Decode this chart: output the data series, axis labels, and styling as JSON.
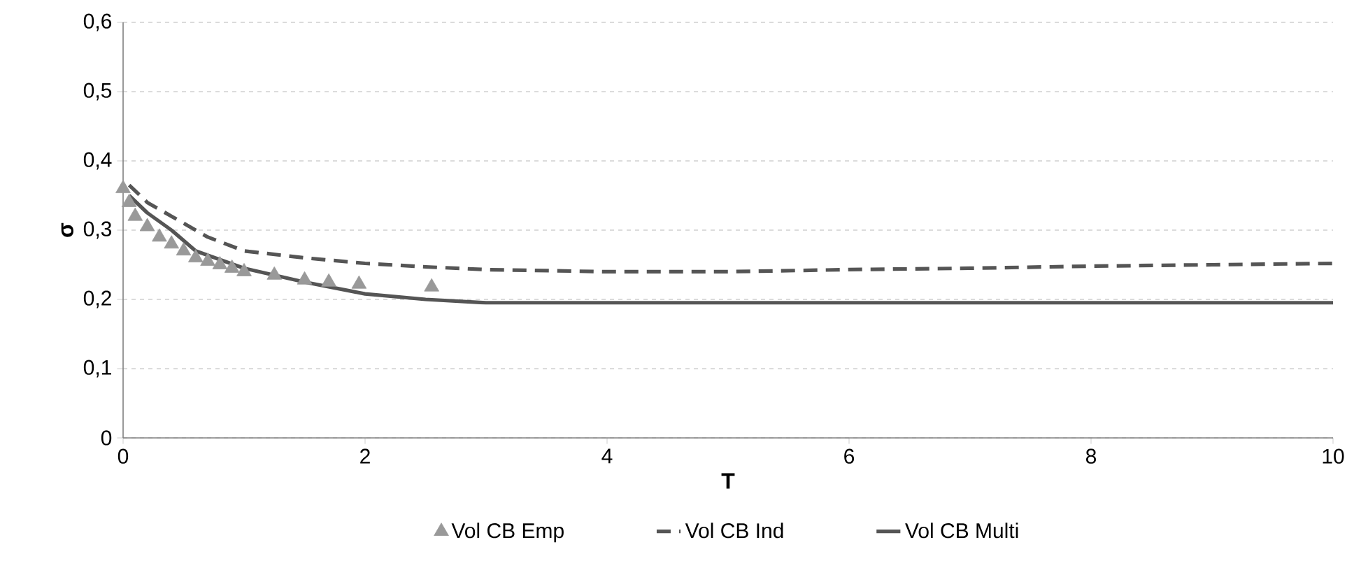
{
  "chart_data": {
    "type": "line",
    "xlabel": "T",
    "ylabel": "σ",
    "xlim": [
      0,
      10
    ],
    "xticks": [
      0,
      2,
      4,
      6,
      8,
      10
    ],
    "ylim": [
      0,
      0.6
    ],
    "yticks": [
      0,
      {
        "value": 0.1,
        "label": "0,1"
      },
      {
        "value": 0.2,
        "label": "0,2"
      },
      {
        "value": 0.3,
        "label": "0,3"
      },
      {
        "value": 0.4,
        "label": "0,4"
      },
      {
        "value": 0.5,
        "label": "0,5"
      },
      {
        "value": 0.6,
        "label": "0,6"
      }
    ],
    "grid": "y",
    "legend": "bottom",
    "series": [
      {
        "name": "Vol CB Emp",
        "type": "scatter",
        "marker": "triangle",
        "color": "#999999",
        "x": [
          0,
          0.05,
          0.1,
          0.2,
          0.3,
          0.4,
          0.5,
          0.6,
          0.7,
          0.8,
          0.9,
          1.0,
          1.25,
          1.5,
          1.7,
          1.95,
          2.55
        ],
        "values": [
          0.36,
          0.34,
          0.32,
          0.305,
          0.29,
          0.28,
          0.27,
          0.26,
          0.255,
          0.25,
          0.245,
          0.24,
          0.235,
          0.228,
          0.225,
          0.222,
          0.218
        ]
      },
      {
        "name": "Vol CB Ind",
        "line_style": "dashed",
        "color": "#555555",
        "x": [
          0.05,
          0.2,
          0.4,
          0.7,
          1,
          1.5,
          2,
          2.5,
          3,
          4,
          5,
          6,
          7,
          8,
          9,
          10
        ],
        "values": [
          0.365,
          0.34,
          0.32,
          0.29,
          0.27,
          0.26,
          0.252,
          0.247,
          0.243,
          0.24,
          0.24,
          0.243,
          0.245,
          0.248,
          0.25,
          0.252
        ]
      },
      {
        "name": "Vol CB Multi",
        "line_style": "solid",
        "color": "#555555",
        "x": [
          0.05,
          0.2,
          0.4,
          0.6,
          1,
          1.5,
          2,
          2.5,
          3,
          10
        ],
        "values": [
          0.35,
          0.325,
          0.3,
          0.27,
          0.245,
          0.225,
          0.208,
          0.2,
          0.195,
          0.195
        ]
      }
    ]
  }
}
